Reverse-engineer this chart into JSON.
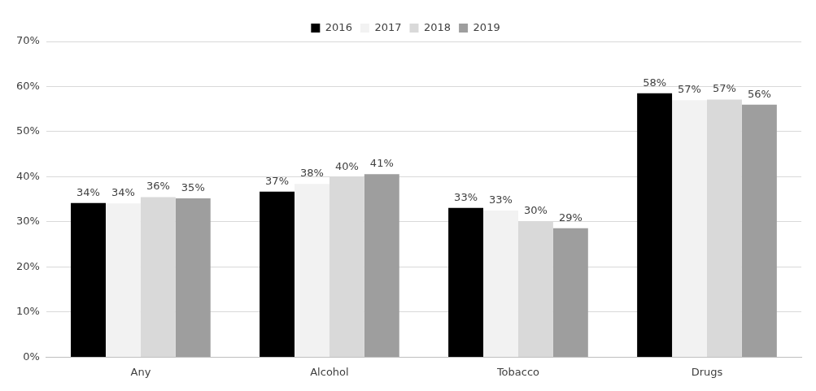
{
  "chart_data": {
    "type": "bar",
    "categories": [
      "Any",
      "Alcohol",
      "Tobacco",
      "Drugs"
    ],
    "series": [
      {
        "name": "2016",
        "color": "#000000",
        "values": [
          34.2,
          36.7,
          33.1,
          58.5
        ],
        "value_labels": [
          "34%",
          "37%",
          "33%",
          "58%"
        ]
      },
      {
        "name": "2017",
        "color": "#f2f2f2",
        "values": [
          34.1,
          38.4,
          32.5,
          57.0
        ],
        "value_labels": [
          "34%",
          "38%",
          "33%",
          "57%"
        ]
      },
      {
        "name": "2018",
        "color": "#d9d9d9",
        "values": [
          35.5,
          39.9,
          30.1,
          57.1
        ],
        "value_labels": [
          "36%",
          "40%",
          "30%",
          "57%"
        ]
      },
      {
        "name": "2019",
        "color": "#9e9e9e",
        "values": [
          35.2,
          40.6,
          28.6,
          56.0
        ],
        "value_labels": [
          "35%",
          "41%",
          "29%",
          "56%"
        ]
      }
    ],
    "ylim": [
      0,
      70
    ],
    "yticks": [
      {
        "value": 0,
        "label": "0%"
      },
      {
        "value": 10,
        "label": "10%"
      },
      {
        "value": 20,
        "label": "20%"
      },
      {
        "value": 30,
        "label": "30%"
      },
      {
        "value": 40,
        "label": "40%"
      },
      {
        "value": 50,
        "label": "50%"
      },
      {
        "value": 60,
        "label": "60%"
      },
      {
        "value": 70,
        "label": "70%"
      }
    ],
    "grid": "y",
    "legend": "top"
  }
}
